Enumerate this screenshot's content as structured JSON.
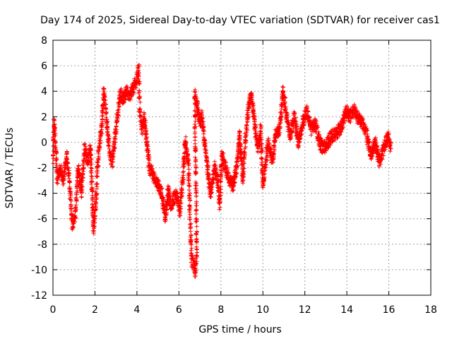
{
  "chart_data": {
    "type": "scatter",
    "title": "Day 174 of 2025, Sidereal Day-to-day VTEC variation (SDTVAR) for receiver cas1",
    "xlabel": "GPS time / hours",
    "ylabel": "SDTVAR / TECUs",
    "xlim": [
      0,
      18
    ],
    "ylim": [
      -12,
      8
    ],
    "xticks": [
      0,
      2,
      4,
      6,
      8,
      10,
      12,
      14,
      16,
      18
    ],
    "yticks": [
      -12,
      -10,
      -8,
      -6,
      -4,
      -2,
      0,
      2,
      4,
      6,
      8
    ],
    "grid": true,
    "marker": "+",
    "series": [
      {
        "name": "SDTVAR",
        "color": "#ff0000",
        "trace": [
          [
            0.0,
            -1.5
          ],
          [
            0.05,
            1.5
          ],
          [
            0.1,
            0.5
          ],
          [
            0.2,
            -2.8
          ],
          [
            0.35,
            -2.0
          ],
          [
            0.5,
            -3.0
          ],
          [
            0.65,
            -1.0
          ],
          [
            0.8,
            -3.5
          ],
          [
            0.92,
            -6.5
          ],
          [
            1.05,
            -6.0
          ],
          [
            1.2,
            -2.0
          ],
          [
            1.35,
            -4.0
          ],
          [
            1.5,
            -0.5
          ],
          [
            1.65,
            -1.5
          ],
          [
            1.8,
            -0.5
          ],
          [
            1.92,
            -6.8
          ],
          [
            2.02,
            -5.5
          ],
          [
            2.12,
            -2.0
          ],
          [
            2.22,
            0.0
          ],
          [
            2.32,
            1.0
          ],
          [
            2.42,
            4.2
          ],
          [
            2.52,
            2.5
          ],
          [
            2.62,
            0.5
          ],
          [
            2.72,
            -1.0
          ],
          [
            2.82,
            -1.5
          ],
          [
            3.2,
            3.8
          ],
          [
            3.35,
            3.5
          ],
          [
            3.5,
            4.0
          ],
          [
            3.65,
            3.6
          ],
          [
            3.95,
            4.8
          ],
          [
            4.08,
            5.8
          ],
          [
            4.15,
            2.0
          ],
          [
            4.25,
            1.0
          ],
          [
            4.35,
            2.0
          ],
          [
            4.5,
            -0.5
          ],
          [
            4.6,
            -2.0
          ],
          [
            5.2,
            -4.0
          ],
          [
            5.35,
            -6.0
          ],
          [
            5.5,
            -3.5
          ],
          [
            5.6,
            -5.0
          ],
          [
            5.75,
            -4.5
          ],
          [
            5.9,
            -4.0
          ],
          [
            6.05,
            -5.5
          ],
          [
            6.2,
            -2.5
          ],
          [
            6.3,
            0.0
          ],
          [
            6.45,
            -1.5
          ],
          [
            6.6,
            -9.2
          ],
          [
            6.7,
            -9.5
          ],
          [
            6.78,
            -10.3
          ],
          [
            6.85,
            -8.5
          ],
          [
            6.75,
            3.8
          ],
          [
            6.85,
            3.0
          ],
          [
            7.0,
            1.5
          ],
          [
            7.1,
            2.0
          ],
          [
            7.5,
            -4.0
          ],
          [
            7.7,
            -2.0
          ],
          [
            7.85,
            -3.0
          ],
          [
            7.95,
            -5.0
          ],
          [
            8.05,
            -1.0
          ],
          [
            8.3,
            -2.5
          ],
          [
            8.55,
            -3.5
          ],
          [
            8.75,
            -2.0
          ],
          [
            8.9,
            0.5
          ],
          [
            9.05,
            -3.0
          ],
          [
            9.15,
            0.0
          ],
          [
            9.3,
            2.5
          ],
          [
            9.45,
            3.8
          ],
          [
            9.6,
            1.5
          ],
          [
            9.75,
            -0.5
          ],
          [
            9.9,
            1.0
          ],
          [
            10.0,
            -3.5
          ],
          [
            10.1,
            -2.0
          ],
          [
            10.25,
            0.0
          ],
          [
            10.45,
            -1.5
          ],
          [
            10.6,
            0.5
          ],
          [
            10.8,
            1.0
          ],
          [
            10.95,
            4.0
          ],
          [
            11.1,
            2.5
          ],
          [
            11.3,
            0.5
          ],
          [
            11.5,
            2.0
          ],
          [
            11.7,
            0.0
          ],
          [
            11.9,
            1.5
          ],
          [
            12.1,
            2.5
          ],
          [
            12.3,
            1.0
          ],
          [
            12.5,
            1.5
          ],
          [
            12.7,
            0.0
          ],
          [
            12.9,
            -0.5
          ],
          [
            13.1,
            0.0
          ],
          [
            13.3,
            0.5
          ],
          [
            13.55,
            0.8
          ],
          [
            13.75,
            1.2
          ],
          [
            13.95,
            2.5
          ],
          [
            14.15,
            2.0
          ],
          [
            14.35,
            2.5
          ],
          [
            14.55,
            1.8
          ],
          [
            14.75,
            1.5
          ],
          [
            14.95,
            0.5
          ],
          [
            15.15,
            -1.0
          ],
          [
            15.35,
            0.0
          ],
          [
            15.55,
            -1.5
          ],
          [
            15.75,
            -0.5
          ],
          [
            15.95,
            0.5
          ],
          [
            16.1,
            -0.5
          ]
        ]
      }
    ]
  }
}
